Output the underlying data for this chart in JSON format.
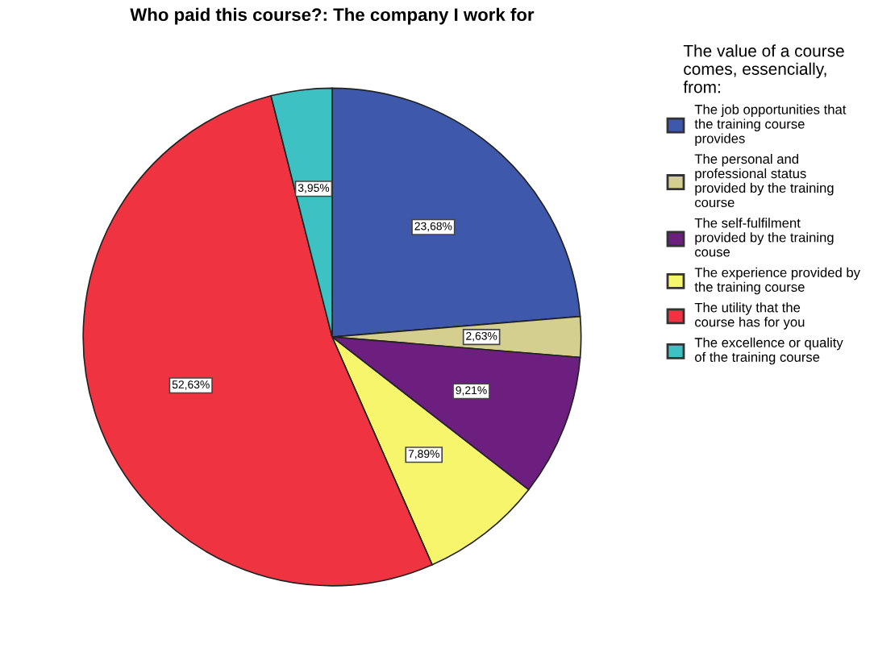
{
  "chart_data": {
    "type": "pie",
    "title": "Who paid this course?: The company I work for",
    "legend_title": "The value of a course comes, essencially, from:",
    "categories": [
      "The job opportunities that the training course provides",
      "The personal and professional status provided by the training course",
      "The self-fulfilment provided by the training couse",
      "The experience provided by the training course",
      "The utility that the course has for you",
      "The excellence or quality of the training course"
    ],
    "values": [
      23.68,
      2.63,
      9.21,
      7.89,
      52.63,
      3.95
    ],
    "value_labels": [
      "23,68%",
      "2,63%",
      "9,21%",
      "7,89%",
      "52,63%",
      "3,95%"
    ],
    "colors": [
      "#3e58ac",
      "#d4cf8f",
      "#6d1f7f",
      "#f7f56b",
      "#ef3340",
      "#3ec1c3"
    ],
    "legend": "right"
  }
}
